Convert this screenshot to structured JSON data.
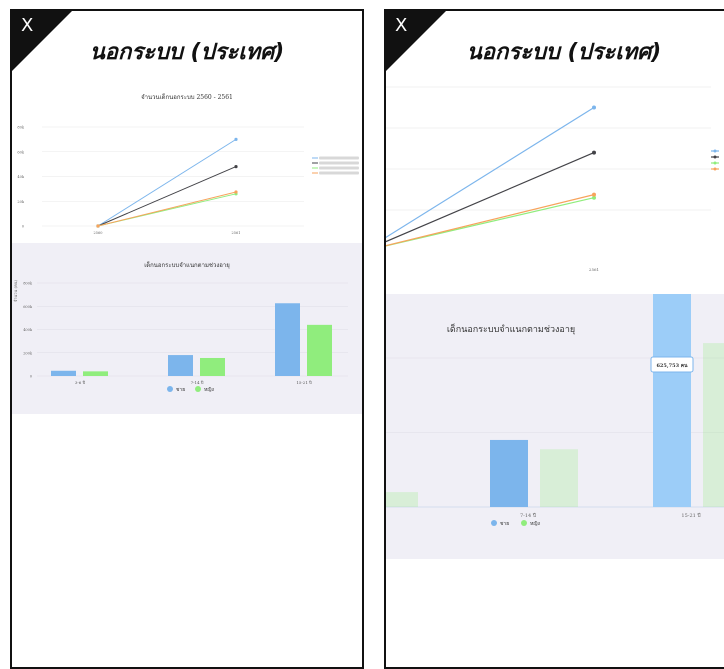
{
  "left": {
    "close_label": "X",
    "title": "นอกระบบ (ประเทศ)",
    "line_chart": {
      "title": "จำนวนเด็กนอกระบบ 2560 - 2561",
      "y_ticks": [
        "0",
        "20k",
        "40k",
        "60k",
        "80k"
      ],
      "x_ticks": [
        "2560",
        "2561"
      ]
    },
    "bar_chart": {
      "title": "เด็กนอกระบบจำแนกตามช่วงอายุ",
      "y_axis_label": "จำนวน (คน)",
      "y_ticks": [
        "0",
        "200k",
        "400k",
        "600k",
        "800k"
      ],
      "legend": [
        "ชาย",
        "หญิง"
      ]
    }
  },
  "right": {
    "close_label": "X",
    "title": "นอกระบบ (ประเทศ)",
    "line_chart": {
      "x_tick": "2561"
    },
    "bar_chart": {
      "title": "เด็กนอกระบบจำแนกตามช่วงอายุ",
      "tooltip": "625,753 คน",
      "legend": [
        "ชาย",
        "หญิง"
      ]
    }
  },
  "chart_data": [
    {
      "type": "line",
      "title": "จำนวนเด็กนอกระบบ 2560 - 2561",
      "x": [
        "2560",
        "2561"
      ],
      "ylim": [
        0,
        80000
      ],
      "series": [
        {
          "values": [
            0,
            70000
          ],
          "color": "#7cb5ec"
        },
        {
          "values": [
            0,
            48000
          ],
          "color": "#434348"
        },
        {
          "values": [
            0,
            26000
          ],
          "color": "#90ed7d"
        },
        {
          "values": [
            0,
            27500
          ],
          "color": "#f7a35c"
        }
      ]
    },
    {
      "type": "bar",
      "title": "เด็กนอกระบบจำแนกตามช่วงอายุ",
      "categories": [
        "3-6 ปี",
        "7-14 ปี",
        "15-21 ปี"
      ],
      "ylabel": "จำนวน (คน)",
      "ylim": [
        0,
        800000
      ],
      "series": [
        {
          "name": "ชาย",
          "values": [
            45000,
            180000,
            625753
          ],
          "color": "#7cb5ec"
        },
        {
          "name": "หญิง",
          "values": [
            40000,
            155000,
            440000
          ],
          "color": "#90ed7d"
        }
      ]
    }
  ]
}
